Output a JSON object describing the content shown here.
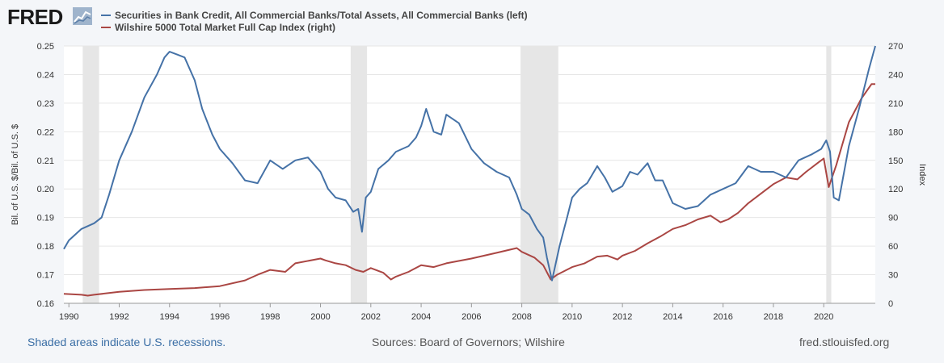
{
  "header": {
    "logo_text": "FRED",
    "logo_icon": "line-chart-icon"
  },
  "colors": {
    "series_left": "#4572a7",
    "series_right": "#aa4643",
    "recession": "#e6e6e6",
    "grid": "#e6e6e6",
    "plot_bg": "#ffffff"
  },
  "footer": {
    "recession_note": "Shaded areas indicate U.S. recessions.",
    "sources": "Sources: Board of Governors; Wilshire",
    "site": "fred.stlouisfed.org"
  },
  "chart_data": {
    "type": "line",
    "x_range": [
      1989.8,
      2022.05
    ],
    "x_ticks": [
      "1990",
      "1992",
      "1994",
      "1996",
      "1998",
      "2000",
      "2002",
      "2004",
      "2006",
      "2008",
      "2010",
      "2012",
      "2014",
      "2016",
      "2018",
      "2020"
    ],
    "y_left": {
      "label": "Bil. of U.S. $/Bil. of U.S. $",
      "range": [
        0.16,
        0.25
      ],
      "ticks": [
        "0.16",
        "0.17",
        "0.18",
        "0.19",
        "0.20",
        "0.21",
        "0.22",
        "0.23",
        "0.24",
        "0.25"
      ]
    },
    "y_right": {
      "label": "Index",
      "range": [
        0,
        270
      ],
      "ticks": [
        "0",
        "30",
        "60",
        "90",
        "120",
        "150",
        "180",
        "210",
        "240",
        "270"
      ]
    },
    "grid": true,
    "legend_position": "top-left",
    "recessions": [
      [
        1990.55,
        1991.2
      ],
      [
        2001.2,
        2001.85
      ],
      [
        2007.95,
        2009.45
      ],
      [
        2020.1,
        2020.3
      ]
    ],
    "series": [
      {
        "name": "Securities in Bank Credit, All Commercial Banks/Total Assets, All Commercial Banks (left)",
        "axis": "left",
        "x": [
          1989.8,
          1990.0,
          1990.5,
          1991.0,
          1991.3,
          1991.6,
          1992.0,
          1992.5,
          1993.0,
          1993.5,
          1993.8,
          1994.0,
          1994.3,
          1994.6,
          1995.0,
          1995.3,
          1995.7,
          1996.0,
          1996.5,
          1997.0,
          1997.5,
          1998.0,
          1998.5,
          1999.0,
          1999.5,
          2000.0,
          2000.3,
          2000.6,
          2001.0,
          2001.3,
          2001.5,
          2001.65,
          2001.8,
          2002.0,
          2002.3,
          2002.7,
          2003.0,
          2003.5,
          2003.8,
          2004.0,
          2004.2,
          2004.5,
          2004.8,
          2005.0,
          2005.5,
          2006.0,
          2006.5,
          2007.0,
          2007.5,
          2007.8,
          2008.0,
          2008.3,
          2008.6,
          2008.85,
          2009.0,
          2009.2,
          2009.5,
          2009.8,
          2010.0,
          2010.3,
          2010.6,
          2011.0,
          2011.3,
          2011.6,
          2012.0,
          2012.3,
          2012.6,
          2013.0,
          2013.3,
          2013.6,
          2014.0,
          2014.5,
          2015.0,
          2015.5,
          2016.0,
          2016.5,
          2017.0,
          2017.5,
          2018.0,
          2018.5,
          2019.0,
          2019.5,
          2019.9,
          2020.1,
          2020.25,
          2020.4,
          2020.6,
          2021.0,
          2021.4,
          2021.8,
          2022.05
        ],
        "y": [
          0.179,
          0.182,
          0.186,
          0.188,
          0.19,
          0.198,
          0.21,
          0.22,
          0.232,
          0.24,
          0.246,
          0.248,
          0.247,
          0.246,
          0.238,
          0.228,
          0.219,
          0.214,
          0.209,
          0.203,
          0.202,
          0.21,
          0.207,
          0.21,
          0.211,
          0.206,
          0.2,
          0.197,
          0.196,
          0.192,
          0.193,
          0.185,
          0.197,
          0.199,
          0.207,
          0.21,
          0.213,
          0.215,
          0.218,
          0.222,
          0.228,
          0.22,
          0.219,
          0.226,
          0.223,
          0.214,
          0.209,
          0.206,
          0.204,
          0.198,
          0.193,
          0.191,
          0.186,
          0.183,
          0.176,
          0.168,
          0.18,
          0.19,
          0.197,
          0.2,
          0.202,
          0.208,
          0.204,
          0.199,
          0.201,
          0.206,
          0.205,
          0.209,
          0.203,
          0.203,
          0.195,
          0.193,
          0.194,
          0.198,
          0.2,
          0.202,
          0.208,
          0.206,
          0.206,
          0.204,
          0.21,
          0.212,
          0.214,
          0.217,
          0.213,
          0.197,
          0.196,
          0.215,
          0.228,
          0.242,
          0.25
        ]
      },
      {
        "name": "Wilshire 5000 Total Market Full Cap Index (right)",
        "axis": "right",
        "x": [
          1989.8,
          1990.5,
          1990.75,
          1991.0,
          1992.0,
          1993.0,
          1994.0,
          1995.0,
          1996.0,
          1997.0,
          1997.5,
          1998.0,
          1998.6,
          1999.0,
          2000.0,
          2000.2,
          2000.6,
          2001.0,
          2001.4,
          2001.7,
          2002.0,
          2002.5,
          2002.8,
          2003.0,
          2003.5,
          2004.0,
          2004.5,
          2005.0,
          2006.0,
          2007.0,
          2007.8,
          2008.0,
          2008.5,
          2008.85,
          2009.15,
          2009.4,
          2010.0,
          2010.5,
          2011.0,
          2011.4,
          2011.8,
          2012.0,
          2012.5,
          2013.0,
          2013.5,
          2014.0,
          2014.5,
          2015.0,
          2015.5,
          2015.9,
          2016.2,
          2016.6,
          2017.0,
          2017.5,
          2018.0,
          2018.5,
          2018.95,
          2019.3,
          2019.8,
          2020.0,
          2020.2,
          2020.5,
          2021.0,
          2021.5,
          2021.9,
          2022.05
        ],
        "y": [
          10,
          9,
          8,
          9,
          12,
          14,
          15,
          16,
          18,
          24,
          30,
          35,
          33,
          42,
          47,
          45,
          42,
          40,
          35,
          33,
          37,
          32,
          25,
          28,
          33,
          40,
          38,
          42,
          47,
          53,
          58,
          54,
          48,
          40,
          25,
          30,
          38,
          42,
          49,
          50,
          46,
          50,
          55,
          63,
          70,
          78,
          82,
          88,
          92,
          85,
          88,
          95,
          105,
          115,
          125,
          132,
          130,
          138,
          148,
          152,
          122,
          145,
          190,
          215,
          230,
          230
        ]
      }
    ]
  }
}
